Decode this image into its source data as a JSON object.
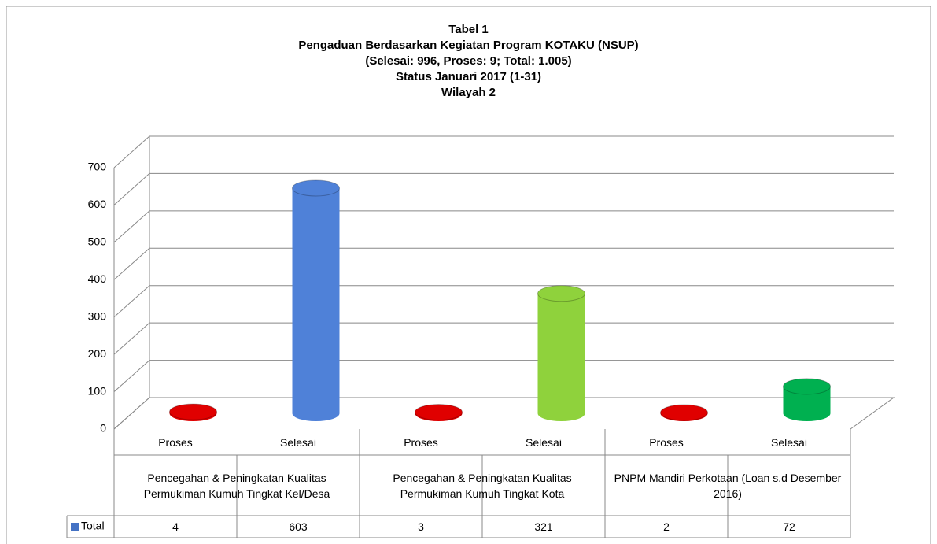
{
  "chart_data": {
    "type": "bar",
    "title": [
      "Tabel 1",
      "Pengaduan Berdasarkan Kegiatan Program KOTAKU (NSUP)",
      "(Selesai: 996, Proses: 9; Total: 1.005)",
      "Status Januari 2017 (1-31)",
      "Wilayah 2"
    ],
    "categories": [
      "Proses",
      "Selesai",
      "Proses",
      "Selesai",
      "Proses",
      "Selesai"
    ],
    "groups": [
      "Pencegahan & Peningkatan Kualitas Permukiman Kumuh Tingkat Kel/Desa",
      "Pencegahan & Peningkatan Kualitas Permukiman Kumuh Tingkat Kota",
      "PNPM Mandiri Perkotaan (Loan s.d Desember 2016)"
    ],
    "series": [
      {
        "name": "Total",
        "color": "#4472c4",
        "values": [
          4,
          603,
          3,
          321,
          2,
          72
        ]
      }
    ],
    "colors": [
      "#e00000",
      "#4f81d8",
      "#e00000",
      "#8fd23c",
      "#e00000",
      "#00b050"
    ],
    "ylim": [
      0,
      700
    ],
    "yticks": [
      0,
      100,
      200,
      300,
      400,
      500,
      600,
      700
    ],
    "grid": true
  }
}
